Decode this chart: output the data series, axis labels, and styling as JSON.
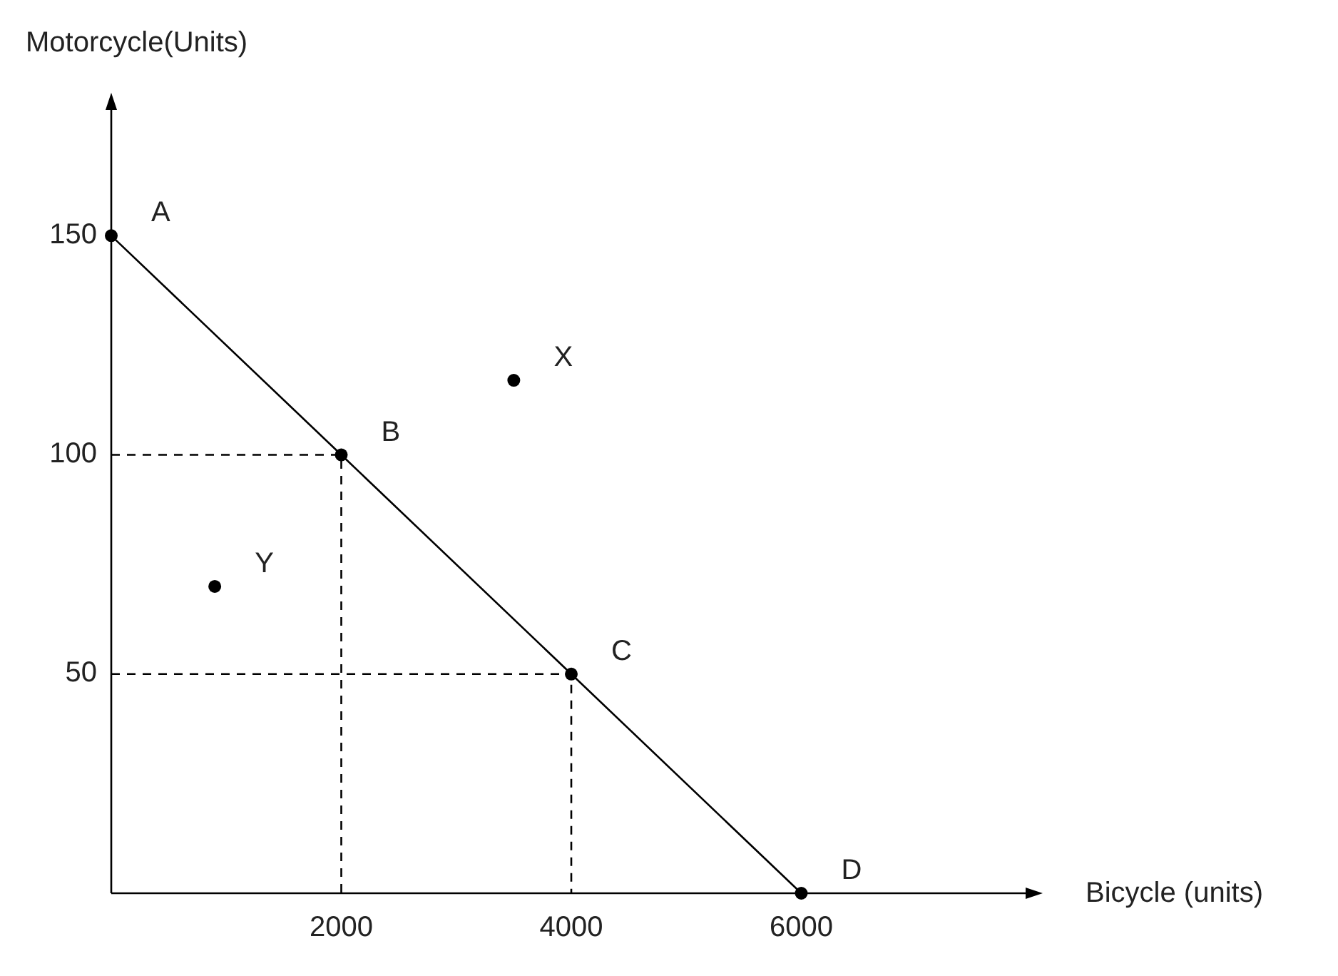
{
  "chart_data": {
    "type": "line",
    "xlabel": "Bicycle (units)",
    "ylabel": "Motorcycle(Units)",
    "xlim": [
      0,
      8000
    ],
    "ylim": [
      0,
      180
    ],
    "xticks": [
      2000,
      4000,
      6000
    ],
    "yticks": [
      50,
      100,
      150
    ],
    "series": [
      {
        "color": "#000000",
        "x": [
          0,
          2000,
          4000,
          6000
        ],
        "values": [
          150,
          100,
          50,
          0
        ],
        "marker": "circle",
        "line_style": "solid"
      },
      {
        "color": "#000000",
        "x": [
          0,
          2000,
          2000
        ],
        "values": [
          100,
          100,
          0
        ],
        "marker": "none",
        "line_style": "dashed"
      },
      {
        "color": "#000000",
        "x": [
          0,
          4000,
          4000
        ],
        "values": [
          50,
          50,
          0
        ],
        "marker": "none",
        "line_style": "dashed"
      },
      {
        "type": "scatter",
        "color": "#000000",
        "x": [
          3500,
          900
        ],
        "values": [
          117,
          70
        ],
        "marker": "circle"
      }
    ],
    "annotations": [
      {
        "text": "A",
        "x": 0,
        "y": 150
      },
      {
        "text": "B",
        "x": 2000,
        "y": 100
      },
      {
        "text": "C",
        "x": 4000,
        "y": 50
      },
      {
        "text": "D",
        "x": 6000,
        "y": 0
      },
      {
        "text": "X",
        "x": 3500,
        "y": 117
      },
      {
        "text": "Y",
        "x": 900,
        "y": 70
      }
    ]
  }
}
